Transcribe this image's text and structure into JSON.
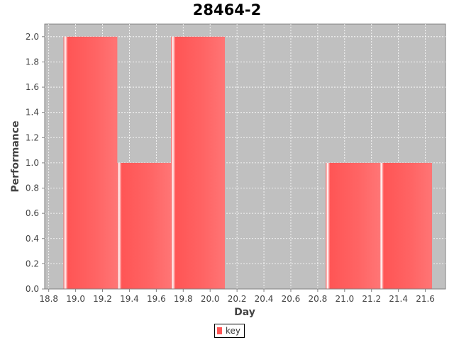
{
  "chart_data": {
    "type": "bar",
    "title": "28464-2",
    "xlabel": "Day",
    "ylabel": "Performance",
    "xlim": [
      18.77,
      21.75
    ],
    "ylim": [
      0,
      2.1
    ],
    "xticks": [
      "18.8",
      "19.0",
      "19.2",
      "19.4",
      "19.6",
      "19.8",
      "20.0",
      "20.2",
      "20.4",
      "20.6",
      "20.8",
      "21.0",
      "21.2",
      "21.4",
      "21.6"
    ],
    "yticks": [
      "0.0",
      "0.2",
      "0.4",
      "0.6",
      "0.8",
      "1.0",
      "1.2",
      "1.4",
      "1.6",
      "1.8",
      "2.0"
    ],
    "grid": true,
    "legend_position": "bottom-center",
    "series": [
      {
        "name": "key",
        "color": "#ff5555",
        "bars": [
          {
            "x0": 18.91,
            "x1": 19.31,
            "value": 2
          },
          {
            "x0": 19.31,
            "x1": 19.71,
            "value": 1
          },
          {
            "x0": 19.71,
            "x1": 20.11,
            "value": 2
          },
          {
            "x0": 20.86,
            "x1": 21.26,
            "value": 1
          },
          {
            "x0": 21.26,
            "x1": 21.65,
            "value": 1
          }
        ]
      }
    ]
  }
}
